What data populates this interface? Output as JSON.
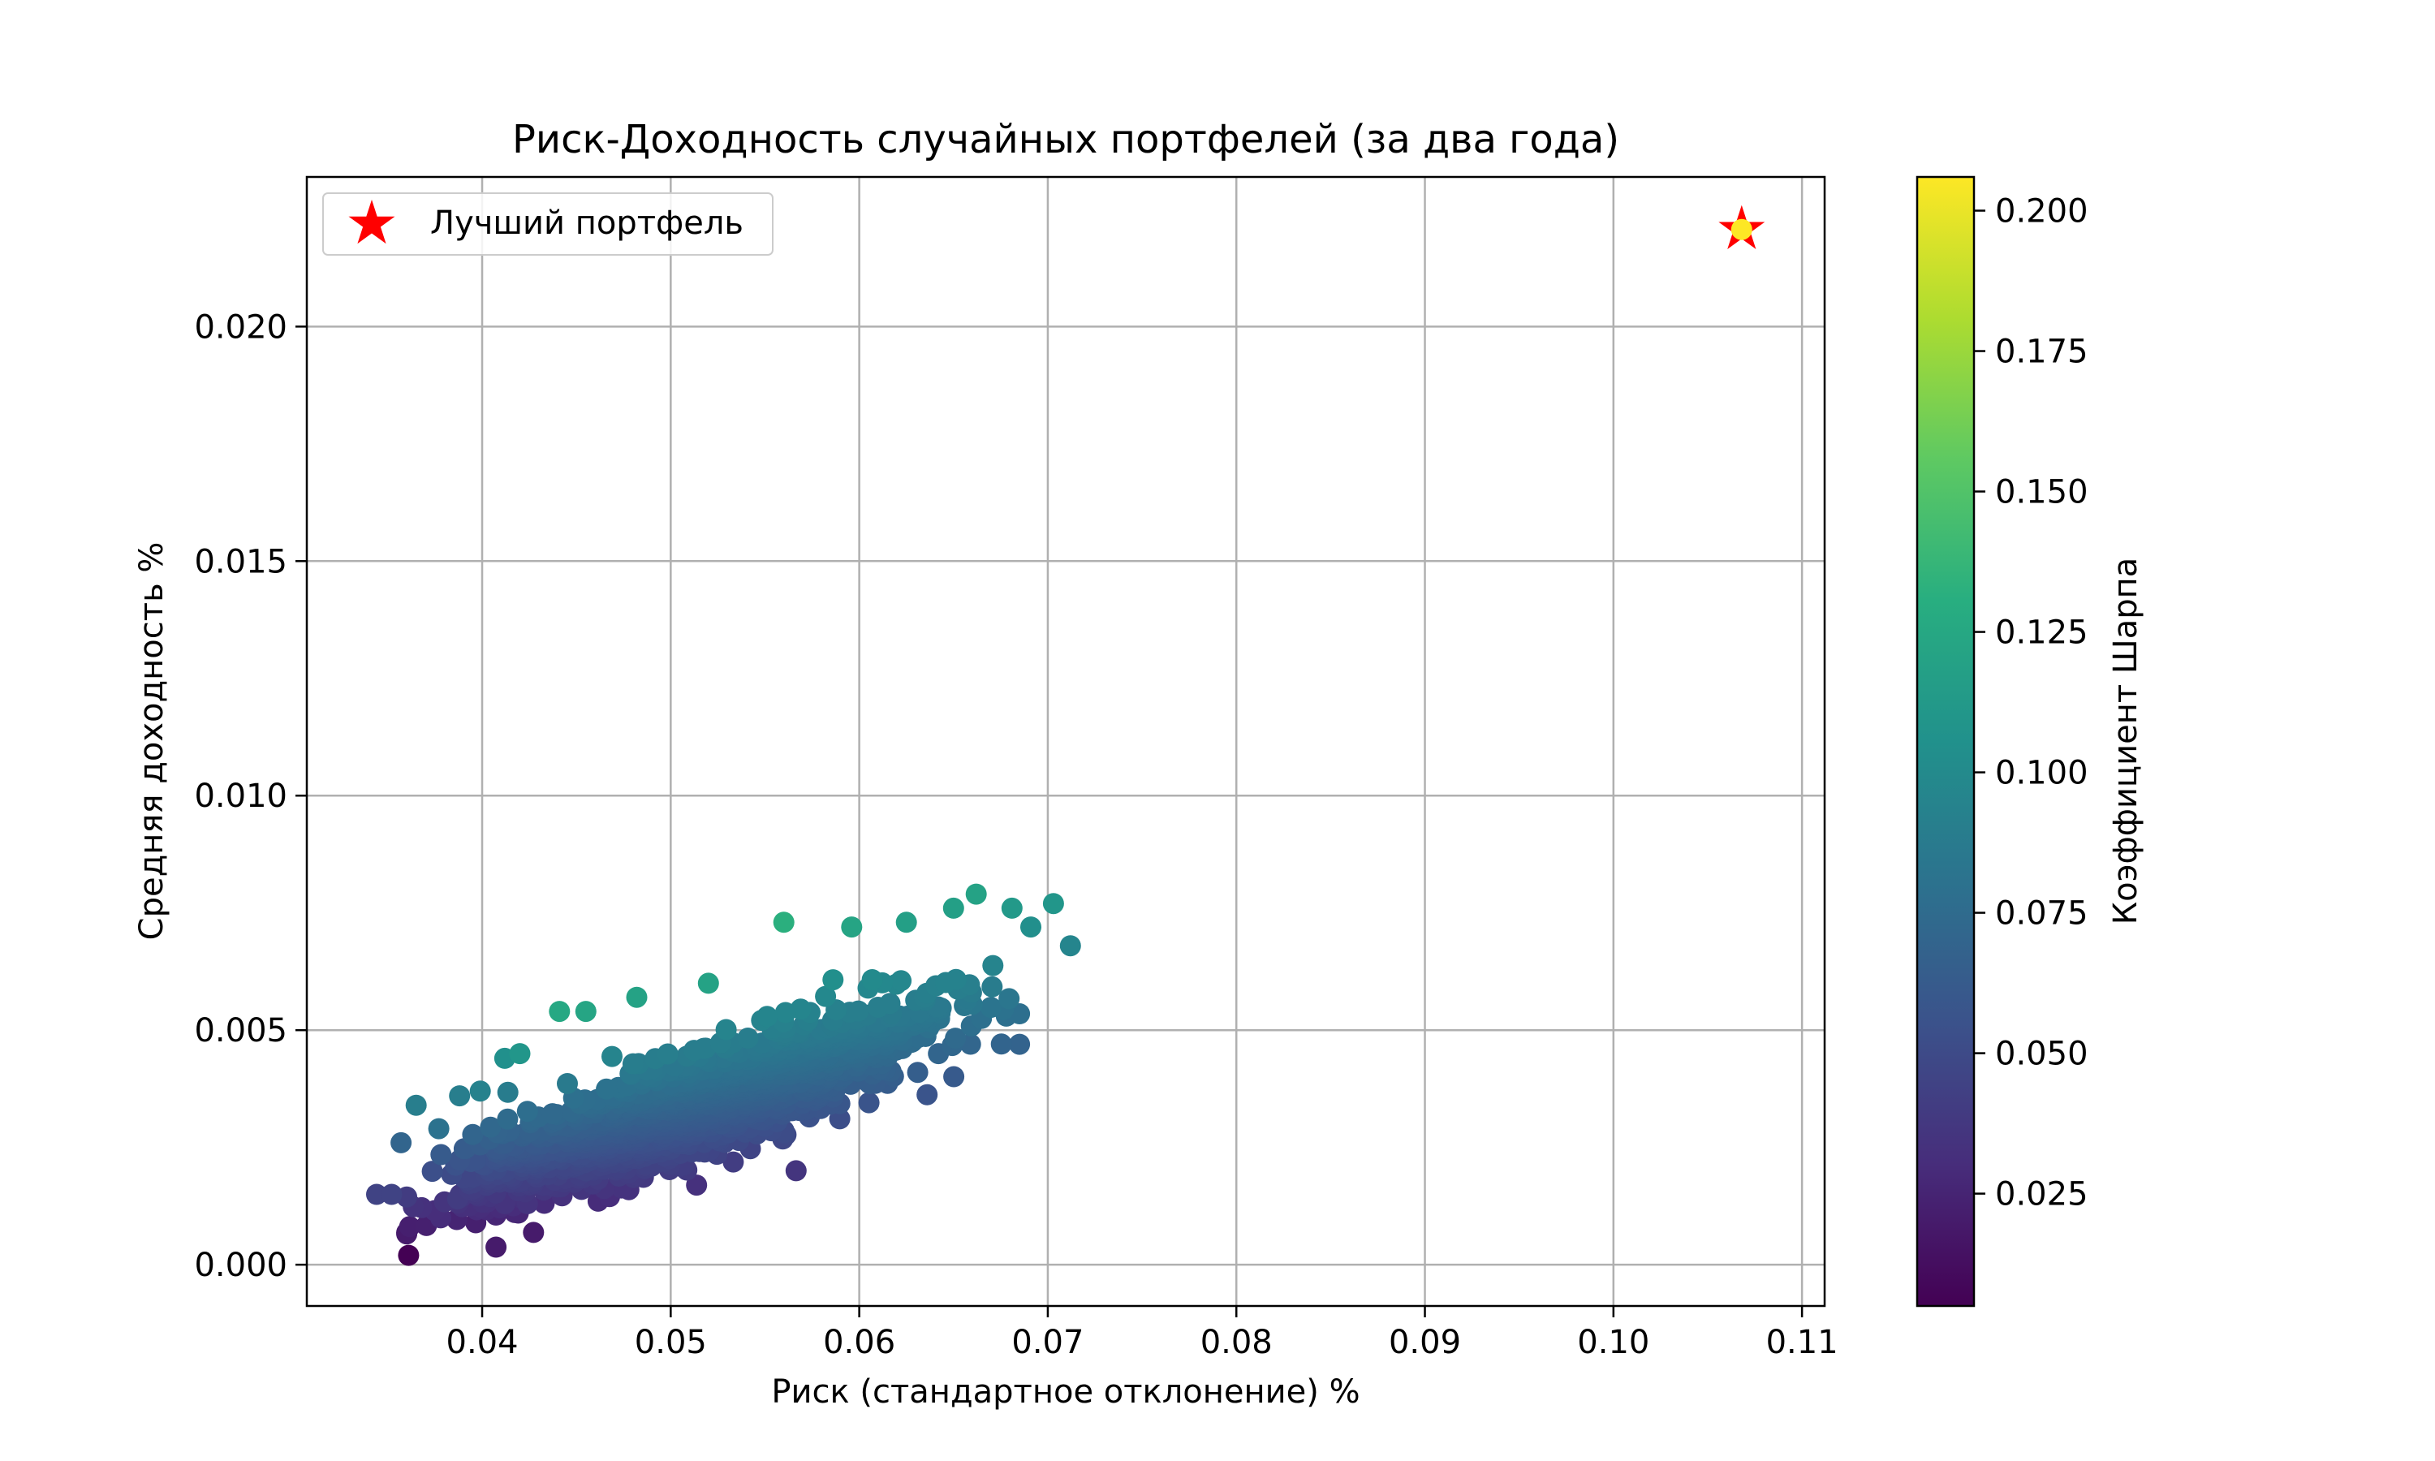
{
  "chart_data": {
    "type": "scatter",
    "title": "Риск-Доходность случайных портфелей (за два года)",
    "xlabel": "Риск (стандартное отклонение) %",
    "ylabel": "Средняя доходность %",
    "xlim": [
      0.0307,
      0.1112
    ],
    "ylim": [
      -0.00088,
      0.02319
    ],
    "x_ticks": [
      "0.04",
      "0.05",
      "0.06",
      "0.07",
      "0.08",
      "0.09",
      "0.10",
      "0.11"
    ],
    "y_ticks": [
      "0.000",
      "0.005",
      "0.010",
      "0.015",
      "0.020"
    ],
    "grid": true,
    "colormap": "viridis",
    "colorbar": {
      "label": "Коэффициент Шарпа",
      "range": [
        0.005,
        0.206
      ],
      "ticks": [
        "0.025",
        "0.050",
        "0.075",
        "0.100",
        "0.125",
        "0.150",
        "0.175",
        "0.200"
      ]
    },
    "legend": {
      "placement": "upper-left",
      "entries": [
        {
          "label": "Лучший портфель",
          "marker": "star",
          "color": "#ff0000"
        }
      ]
    },
    "best_portfolio": {
      "x": 0.1068,
      "y": 0.02207,
      "sharpe": 0.206
    },
    "cloud_trend": {
      "x_range": [
        0.034,
        0.071
      ],
      "intercept": -0.0038,
      "slope": 0.14
    },
    "series": [
      {
        "name": "Лучший портфель",
        "points": [
          {
            "x": 0.1068,
            "y": 0.02207,
            "sharpe": 0.206
          }
        ]
      },
      {
        "points": [
          {
            "x": 0.0361,
            "y": 0.0002,
            "sharpe": 0.005
          },
          {
            "x": 0.0344,
            "y": 0.0015,
            "sharpe": 0.045
          },
          {
            "x": 0.0352,
            "y": 0.0015,
            "sharpe": 0.045
          },
          {
            "x": 0.0378,
            "y": 0.001,
            "sharpe": 0.03
          },
          {
            "x": 0.0387,
            "y": 0.0014,
            "sharpe": 0.04
          },
          {
            "x": 0.0412,
            "y": 0.0013,
            "sharpe": 0.035
          },
          {
            "x": 0.0424,
            "y": 0.0013,
            "sharpe": 0.035
          },
          {
            "x": 0.0357,
            "y": 0.0026,
            "sharpe": 0.07
          },
          {
            "x": 0.0365,
            "y": 0.0034,
            "sharpe": 0.09
          },
          {
            "x": 0.0377,
            "y": 0.0029,
            "sharpe": 0.08
          },
          {
            "x": 0.0388,
            "y": 0.0036,
            "sharpe": 0.09
          },
          {
            "x": 0.0399,
            "y": 0.0037,
            "sharpe": 0.093
          },
          {
            "x": 0.0412,
            "y": 0.0044,
            "sharpe": 0.105
          },
          {
            "x": 0.042,
            "y": 0.0045,
            "sharpe": 0.11
          },
          {
            "x": 0.0441,
            "y": 0.0054,
            "sharpe": 0.125
          },
          {
            "x": 0.0455,
            "y": 0.0054,
            "sharpe": 0.123
          },
          {
            "x": 0.0482,
            "y": 0.0057,
            "sharpe": 0.12
          },
          {
            "x": 0.052,
            "y": 0.006,
            "sharpe": 0.12
          },
          {
            "x": 0.056,
            "y": 0.0073,
            "sharpe": 0.132
          },
          {
            "x": 0.0596,
            "y": 0.0072,
            "sharpe": 0.122
          },
          {
            "x": 0.0625,
            "y": 0.0073,
            "sharpe": 0.118
          },
          {
            "x": 0.065,
            "y": 0.0076,
            "sharpe": 0.118
          },
          {
            "x": 0.0662,
            "y": 0.0079,
            "sharpe": 0.12
          },
          {
            "x": 0.0681,
            "y": 0.0076,
            "sharpe": 0.112
          },
          {
            "x": 0.0703,
            "y": 0.0077,
            "sharpe": 0.11
          },
          {
            "x": 0.0712,
            "y": 0.0068,
            "sharpe": 0.096
          },
          {
            "x": 0.0691,
            "y": 0.0072,
            "sharpe": 0.104
          },
          {
            "x": 0.0678,
            "y": 0.0053,
            "sharpe": 0.078
          },
          {
            "x": 0.0659,
            "y": 0.0047,
            "sharpe": 0.071
          },
          {
            "x": 0.0642,
            "y": 0.0045,
            "sharpe": 0.07
          },
          {
            "x": 0.0631,
            "y": 0.0041,
            "sharpe": 0.065
          },
          {
            "x": 0.0587,
            "y": 0.0037,
            "sharpe": 0.064
          },
          {
            "x": 0.055,
            "y": 0.0035,
            "sharpe": 0.063
          },
          {
            "x": 0.0527,
            "y": 0.003,
            "sharpe": 0.058
          },
          {
            "x": 0.0518,
            "y": 0.0024,
            "sharpe": 0.046
          },
          {
            "x": 0.0505,
            "y": 0.0021,
            "sharpe": 0.042
          },
          {
            "x": 0.0463,
            "y": 0.0023,
            "sharpe": 0.05
          },
          {
            "x": 0.0455,
            "y": 0.002,
            "sharpe": 0.045
          },
          {
            "x": 0.0404,
            "y": 0.002,
            "sharpe": 0.05
          },
          {
            "x": 0.0394,
            "y": 0.0022,
            "sharpe": 0.056
          }
        ]
      }
    ]
  }
}
